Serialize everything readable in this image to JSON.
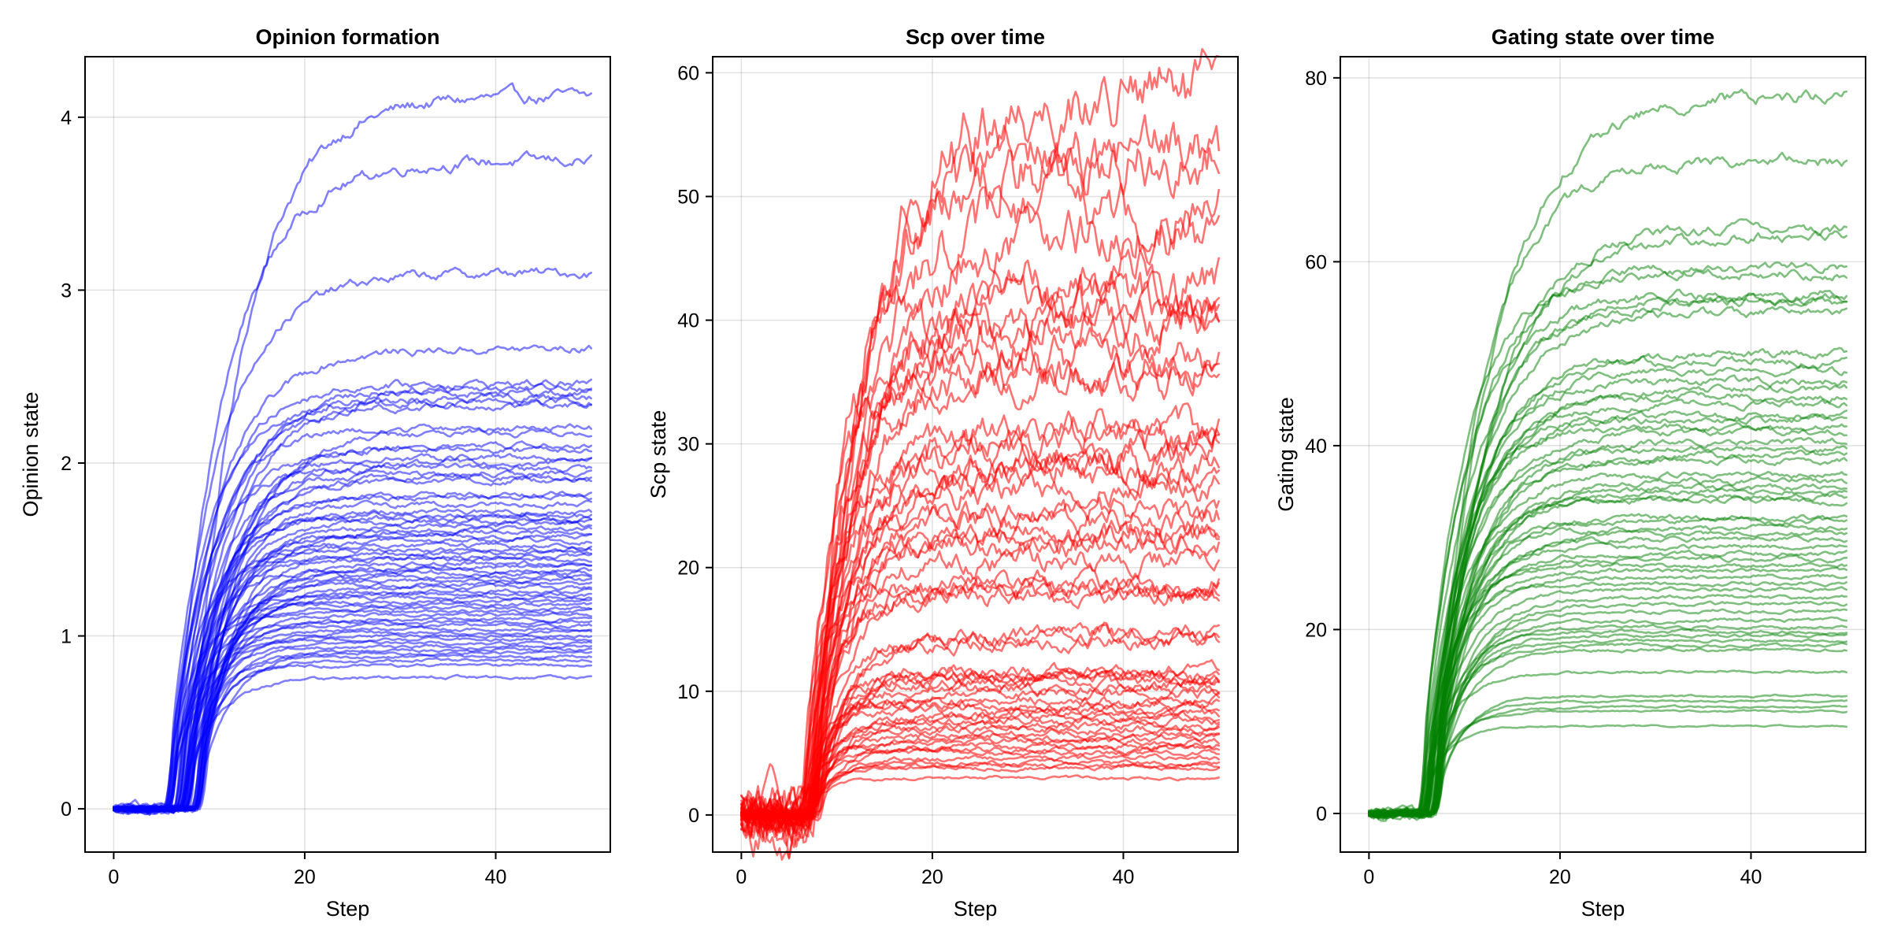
{
  "chart_data": [
    {
      "type": "line",
      "title": "Opinion formation",
      "xlabel": "Step",
      "ylabel": "Opinion state",
      "xlim": [
        -3,
        52
      ],
      "ylim": [
        -0.25,
        4.35
      ],
      "xticks": [
        0,
        20,
        40
      ],
      "yticks": [
        0,
        1,
        2,
        3,
        4
      ],
      "grid": true,
      "color": "#0000ff",
      "series_opacity": 0.5,
      "x_range": [
        0,
        50
      ],
      "onset_steps": [
        5,
        9
      ],
      "noise": 0.02,
      "final_values": [
        4.12,
        3.75,
        3.1,
        2.66,
        2.46,
        2.44,
        2.41,
        2.38,
        2.35,
        2.33,
        2.2,
        2.18,
        2.1,
        2.08,
        2.03,
        2.0,
        1.97,
        1.94,
        1.92,
        1.9,
        1.82,
        1.8,
        1.76,
        1.72,
        1.7,
        1.68,
        1.66,
        1.64,
        1.62,
        1.6,
        1.58,
        1.55,
        1.52,
        1.5,
        1.48,
        1.46,
        1.44,
        1.42,
        1.4,
        1.38,
        1.36,
        1.34,
        1.32,
        1.3,
        1.28,
        1.26,
        1.24,
        1.22,
        1.2,
        1.18,
        1.16,
        1.14,
        1.12,
        1.1,
        1.08,
        1.06,
        1.04,
        1.02,
        1.0,
        0.98,
        0.96,
        0.94,
        0.92,
        0.9,
        0.88,
        0.86,
        0.83,
        0.76
      ]
    },
    {
      "type": "line",
      "title": "Scp over time",
      "xlabel": "Step",
      "ylabel": "Scp state",
      "xlim": [
        -3,
        52
      ],
      "ylim": [
        -3,
        61.3
      ],
      "xticks": [
        0,
        20,
        40
      ],
      "yticks": [
        0,
        10,
        20,
        30,
        40,
        50,
        60
      ],
      "grid": true,
      "color": "#ff0000",
      "series_opacity": 0.55,
      "x_range": [
        0,
        50
      ],
      "onset_steps": [
        6,
        8
      ],
      "noise": 0.1,
      "final_values": [
        58.2,
        53.5,
        53.2,
        49.6,
        47.1,
        43.6,
        41.5,
        41.2,
        40.0,
        39.7,
        37.0,
        35.8,
        35.5,
        31.0,
        30.9,
        29.5,
        28.7,
        28.0,
        27.5,
        26.4,
        24.3,
        24.0,
        22.6,
        22.5,
        21.8,
        20.5,
        18.7,
        18.4,
        18.0,
        17.6,
        14.7,
        14.4,
        14.0,
        11.7,
        11.5,
        11.2,
        10.9,
        10.6,
        10.2,
        9.8,
        9.3,
        8.9,
        8.5,
        8.2,
        7.9,
        7.6,
        7.2,
        6.9,
        6.6,
        6.2,
        5.9,
        5.6,
        5.3,
        5.0,
        4.6,
        4.2,
        4.0,
        3.8,
        3.0
      ]
    },
    {
      "type": "line",
      "title": "Gating state over time",
      "xlabel": "Step",
      "ylabel": "Gating state",
      "xlim": [
        -3,
        52
      ],
      "ylim": [
        -4.2,
        82.3
      ],
      "xticks": [
        0,
        20,
        40
      ],
      "yticks": [
        0,
        20,
        40,
        60,
        80
      ],
      "grid": true,
      "color": "#008000",
      "series_opacity": 0.5,
      "x_range": [
        0,
        50
      ],
      "onset_steps": [
        5,
        7
      ],
      "noise": 0.02,
      "final_values": [
        78.2,
        71.0,
        63.8,
        62.9,
        59.5,
        58.7,
        56.5,
        56.0,
        55.7,
        54.5,
        50.0,
        49.2,
        48.0,
        47.0,
        46.2,
        45.4,
        44.5,
        43.2,
        42.8,
        42.0,
        41.5,
        40.4,
        39.6,
        38.9,
        38.4,
        36.8,
        36.1,
        35.4,
        35.0,
        34.5,
        34.0,
        32.2,
        31.8,
        31.0,
        30.5,
        29.8,
        29.0,
        28.3,
        27.6,
        27.0,
        26.4,
        25.8,
        25.0,
        24.4,
        23.5,
        22.8,
        22.0,
        21.0,
        20.3,
        19.8,
        19.3,
        18.8,
        18.3,
        17.8,
        15.4,
        12.8,
        12.2,
        11.6,
        11.1,
        9.5
      ]
    }
  ]
}
